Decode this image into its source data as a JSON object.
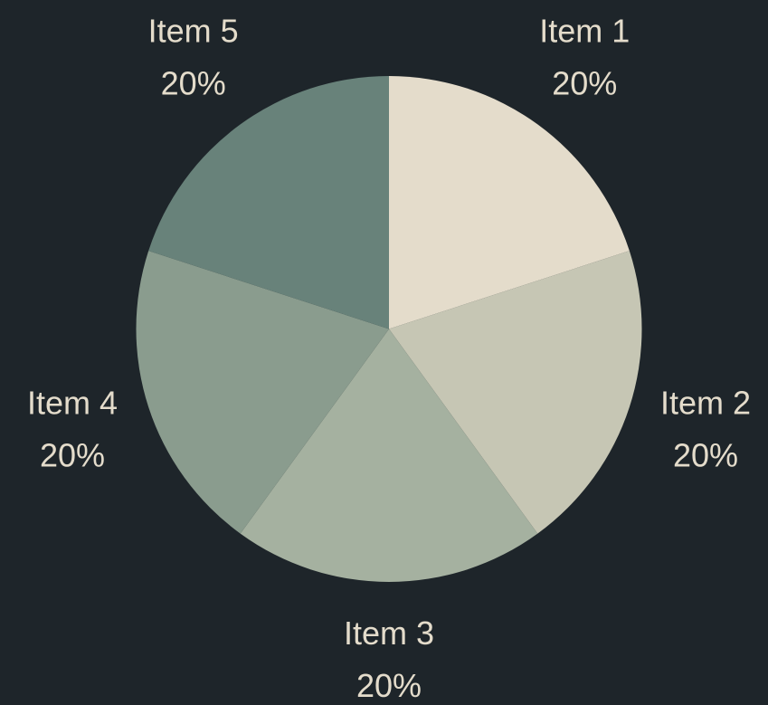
{
  "chart_data": {
    "type": "pie",
    "categories": [
      "Item 1",
      "Item 2",
      "Item 3",
      "Item 4",
      "Item 5"
    ],
    "values": [
      20,
      20,
      20,
      20,
      20
    ],
    "value_labels": [
      "20%",
      "20%",
      "20%",
      "20%",
      "20%"
    ],
    "colors": [
      "#e4dccb",
      "#c6c6b4",
      "#a5b1a0",
      "#8a9c8e",
      "#68827a"
    ]
  }
}
